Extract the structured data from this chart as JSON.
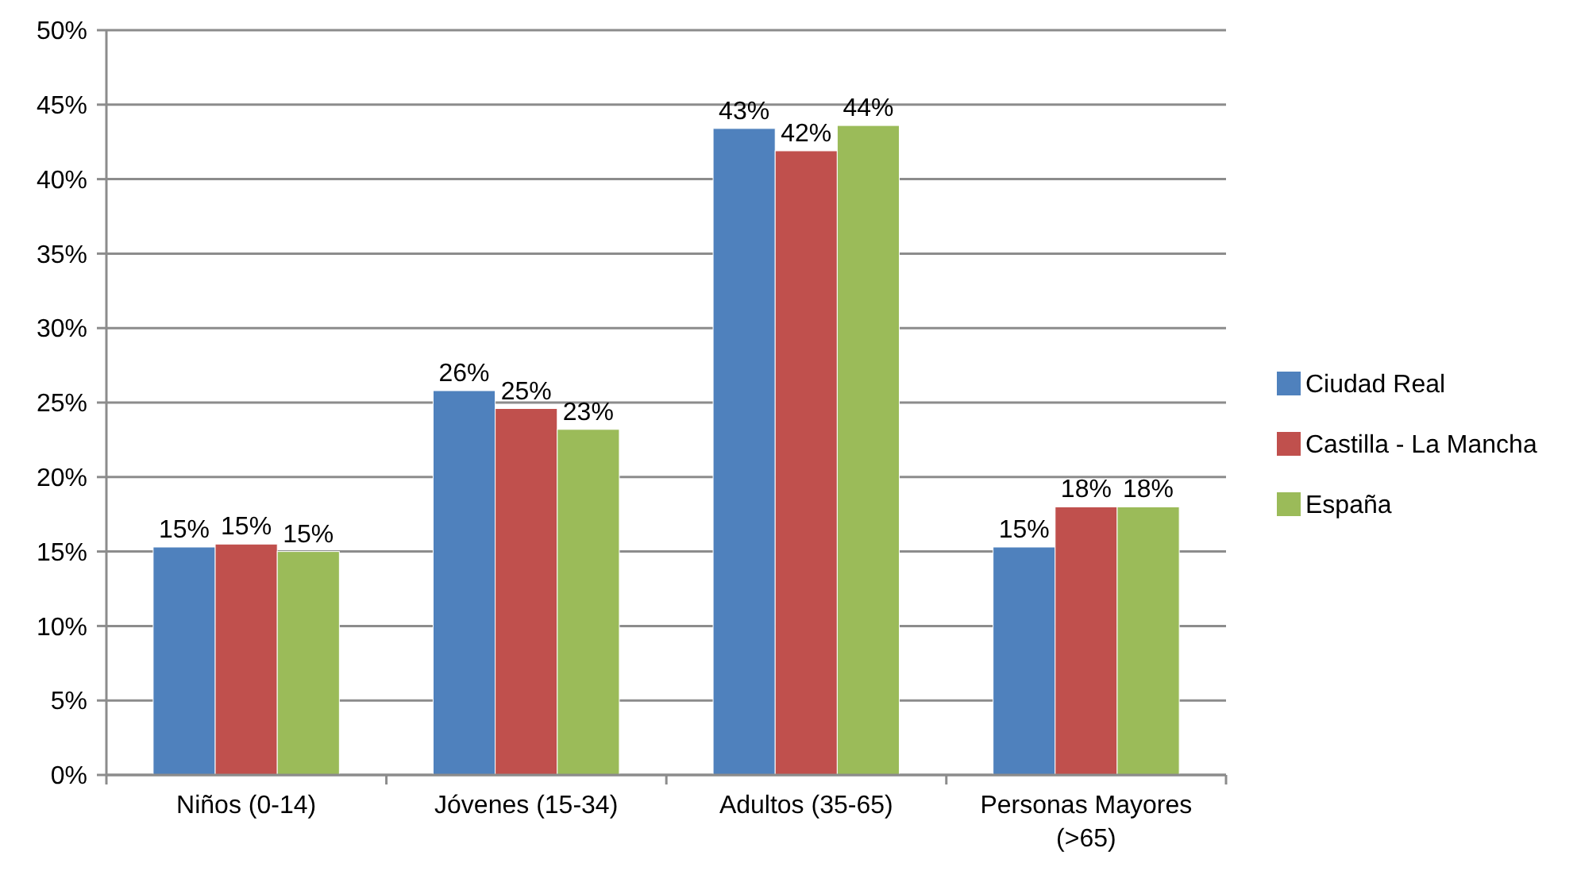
{
  "chart_data": {
    "type": "bar",
    "categories": [
      "Niños (0-14)",
      "Jóvenes (15-34)",
      "Adultos (35-65)",
      "Personas Mayores (>65)"
    ],
    "series": [
      {
        "name": "Ciudad Real",
        "color": "#4f81bd",
        "values": [
          15.3,
          25.8,
          43.4,
          15.3
        ],
        "value_labels": [
          "15%",
          "26%",
          "43%",
          "15%"
        ]
      },
      {
        "name": "Castilla - La Mancha",
        "color": "#c0504d",
        "values": [
          15.5,
          24.6,
          41.9,
          18.0
        ],
        "value_labels": [
          "15%",
          "25%",
          "42%",
          "18%"
        ]
      },
      {
        "name": "España",
        "color": "#9bbb59",
        "values": [
          15.0,
          23.2,
          43.6,
          18.0
        ],
        "value_labels": [
          "15%",
          "23%",
          "44%",
          "18%"
        ]
      }
    ],
    "ylim": [
      0,
      50
    ],
    "yticks": [
      {
        "value": 0,
        "label": "0%"
      },
      {
        "value": 5,
        "label": "5%"
      },
      {
        "value": 10,
        "label": "10%"
      },
      {
        "value": 15,
        "label": "15%"
      },
      {
        "value": 20,
        "label": "20%"
      },
      {
        "value": 25,
        "label": "25%"
      },
      {
        "value": 30,
        "label": "30%"
      },
      {
        "value": 35,
        "label": "35%"
      },
      {
        "value": 40,
        "label": "40%"
      },
      {
        "value": 45,
        "label": "45%"
      },
      {
        "value": 50,
        "label": "50%"
      }
    ],
    "grid": "y",
    "legend": "right"
  }
}
